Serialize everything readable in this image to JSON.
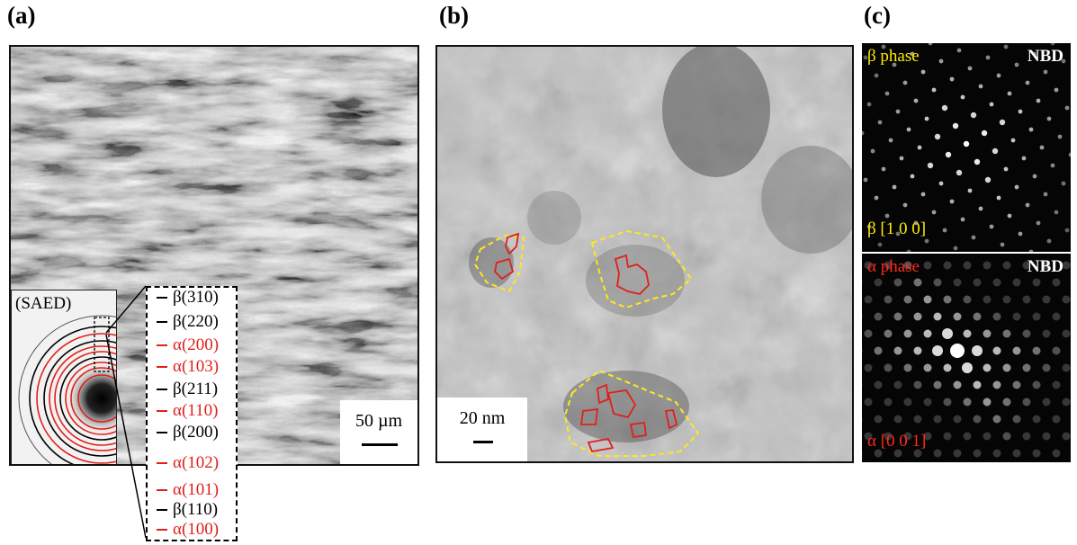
{
  "panels": {
    "a": {
      "label": "(a)",
      "scale_bar": "50 µm",
      "inset_label": "(SAED)",
      "rings": [
        {
          "label": "β(310)",
          "phase": "beta"
        },
        {
          "label": "β(220)",
          "phase": "beta"
        },
        {
          "label": "α(200)",
          "phase": "alpha"
        },
        {
          "label": "α(103)",
          "phase": "alpha"
        },
        {
          "label": "β(211)",
          "phase": "beta"
        },
        {
          "label": "α(110)",
          "phase": "alpha"
        },
        {
          "label": "β(200)",
          "phase": "beta"
        },
        {
          "label": "α(102)",
          "phase": "alpha"
        },
        {
          "label": "α(101)",
          "phase": "alpha"
        },
        {
          "label": "β(110)",
          "phase": "beta"
        },
        {
          "label": "α(100)",
          "phase": "alpha"
        }
      ]
    },
    "b": {
      "label": "(b)",
      "scale_bar": "20 nm"
    },
    "c": {
      "label": "(c)",
      "top": {
        "phase_title": "β phase",
        "mode": "NBD",
        "zone_axis": "β [1 0 0]"
      },
      "bottom": {
        "phase_title": "α phase",
        "mode": "NBD",
        "zone_axis": "α [0 0 1]"
      }
    }
  },
  "colors": {
    "alpha": "#e0201b",
    "beta": "#000000",
    "outline_yellow": "#ffe81a",
    "outline_red": "#e0201b"
  }
}
